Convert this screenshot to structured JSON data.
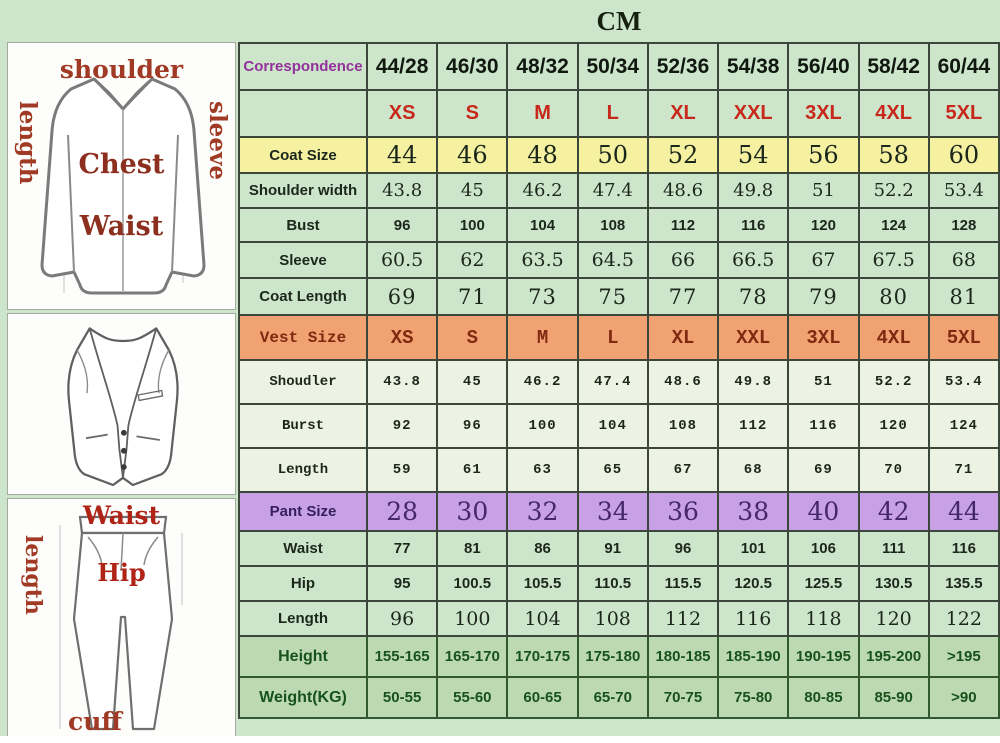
{
  "title": "CM",
  "colors": {
    "background": "#cde6cb",
    "coat_size_row": "#f5f1a0",
    "vest_size_row": "#f0a273",
    "pant_size_row": "#c7a0e5",
    "body_rows": "#bdd9b3",
    "size_letters_text": "#c8281c",
    "correspondence_text": "#93309c",
    "diagram_label_text": "#a03a24",
    "grid_line": "#3b473b"
  },
  "diagrams": {
    "jacket": {
      "label_shoulder": "shoulder",
      "label_length": "length",
      "label_sleeve": "sleeve",
      "label_chest": "Chest",
      "label_waist": "Waist"
    },
    "pants": {
      "label_waist": "Waist",
      "label_length": "length",
      "label_hip": "Hip",
      "label_cuff": "cuff"
    }
  },
  "size_chart": {
    "unit": "CM",
    "rows": [
      {
        "kind": "corr",
        "label": "Correspondence",
        "values": [
          "44/28",
          "46/30",
          "48/32",
          "50/34",
          "52/36",
          "54/38",
          "56/40",
          "58/42",
          "60/44"
        ]
      },
      {
        "kind": "sizes",
        "label": "",
        "values": [
          "XS",
          "S",
          "M",
          "L",
          "XL",
          "XXL",
          "3XL",
          "4XL",
          "5XL"
        ]
      },
      {
        "kind": "coat-size",
        "label": "Coat Size",
        "values": [
          "44",
          "46",
          "48",
          "50",
          "52",
          "54",
          "56",
          "58",
          "60"
        ]
      },
      {
        "kind": "shoulder",
        "label": "Shoulder width",
        "values": [
          "43.8",
          "45",
          "46.2",
          "47.4",
          "48.6",
          "49.8",
          "51",
          "52.2",
          "53.4"
        ]
      },
      {
        "kind": "bust",
        "label": "Bust",
        "values": [
          "96",
          "100",
          "104",
          "108",
          "112",
          "116",
          "120",
          "124",
          "128"
        ]
      },
      {
        "kind": "sleeve",
        "label": "Sleeve",
        "values": [
          "60.5",
          "62",
          "63.5",
          "64.5",
          "66",
          "66.5",
          "67",
          "67.5",
          "68"
        ]
      },
      {
        "kind": "coatlen",
        "label": "Coat Length",
        "values": [
          "69",
          "71",
          "73",
          "75",
          "77",
          "78",
          "79",
          "80",
          "81"
        ]
      },
      {
        "kind": "vest-size",
        "label": "Vest Size",
        "values": [
          "XS",
          "S",
          "M",
          "L",
          "XL",
          "XXL",
          "3XL",
          "4XL",
          "5XL"
        ]
      },
      {
        "kind": "vest",
        "label": "Shoudler",
        "values": [
          "43.8",
          "45",
          "46.2",
          "47.4",
          "48.6",
          "49.8",
          "51",
          "52.2",
          "53.4"
        ]
      },
      {
        "kind": "vest",
        "label": "Burst",
        "values": [
          "92",
          "96",
          "100",
          "104",
          "108",
          "112",
          "116",
          "120",
          "124"
        ]
      },
      {
        "kind": "vest",
        "label": "Length",
        "values": [
          "59",
          "61",
          "63",
          "65",
          "67",
          "68",
          "69",
          "70",
          "71"
        ]
      },
      {
        "kind": "pant-size",
        "label": "Pant Size",
        "values": [
          "28",
          "30",
          "32",
          "34",
          "36",
          "38",
          "40",
          "42",
          "44"
        ]
      },
      {
        "kind": "pant-sans",
        "label": "Waist",
        "values": [
          "77",
          "81",
          "86",
          "91",
          "96",
          "101",
          "106",
          "111",
          "116"
        ]
      },
      {
        "kind": "pant-sans",
        "label": "Hip",
        "values": [
          "95",
          "100.5",
          "105.5",
          "110.5",
          "115.5",
          "120.5",
          "125.5",
          "130.5",
          "135.5"
        ]
      },
      {
        "kind": "pant-serif",
        "label": "Length",
        "values": [
          "96",
          "100",
          "104",
          "108",
          "112",
          "116",
          "118",
          "120",
          "122"
        ]
      },
      {
        "kind": "body",
        "label": "Height",
        "values": [
          "155-165",
          "165-170",
          "170-175",
          "175-180",
          "180-185",
          "185-190",
          "190-195",
          "195-200",
          ">195"
        ]
      },
      {
        "kind": "body",
        "label": "Weight(KG)",
        "values": [
          "50-55",
          "55-60",
          "60-65",
          "65-70",
          "70-75",
          "75-80",
          "80-85",
          "85-90",
          ">90"
        ]
      }
    ]
  }
}
